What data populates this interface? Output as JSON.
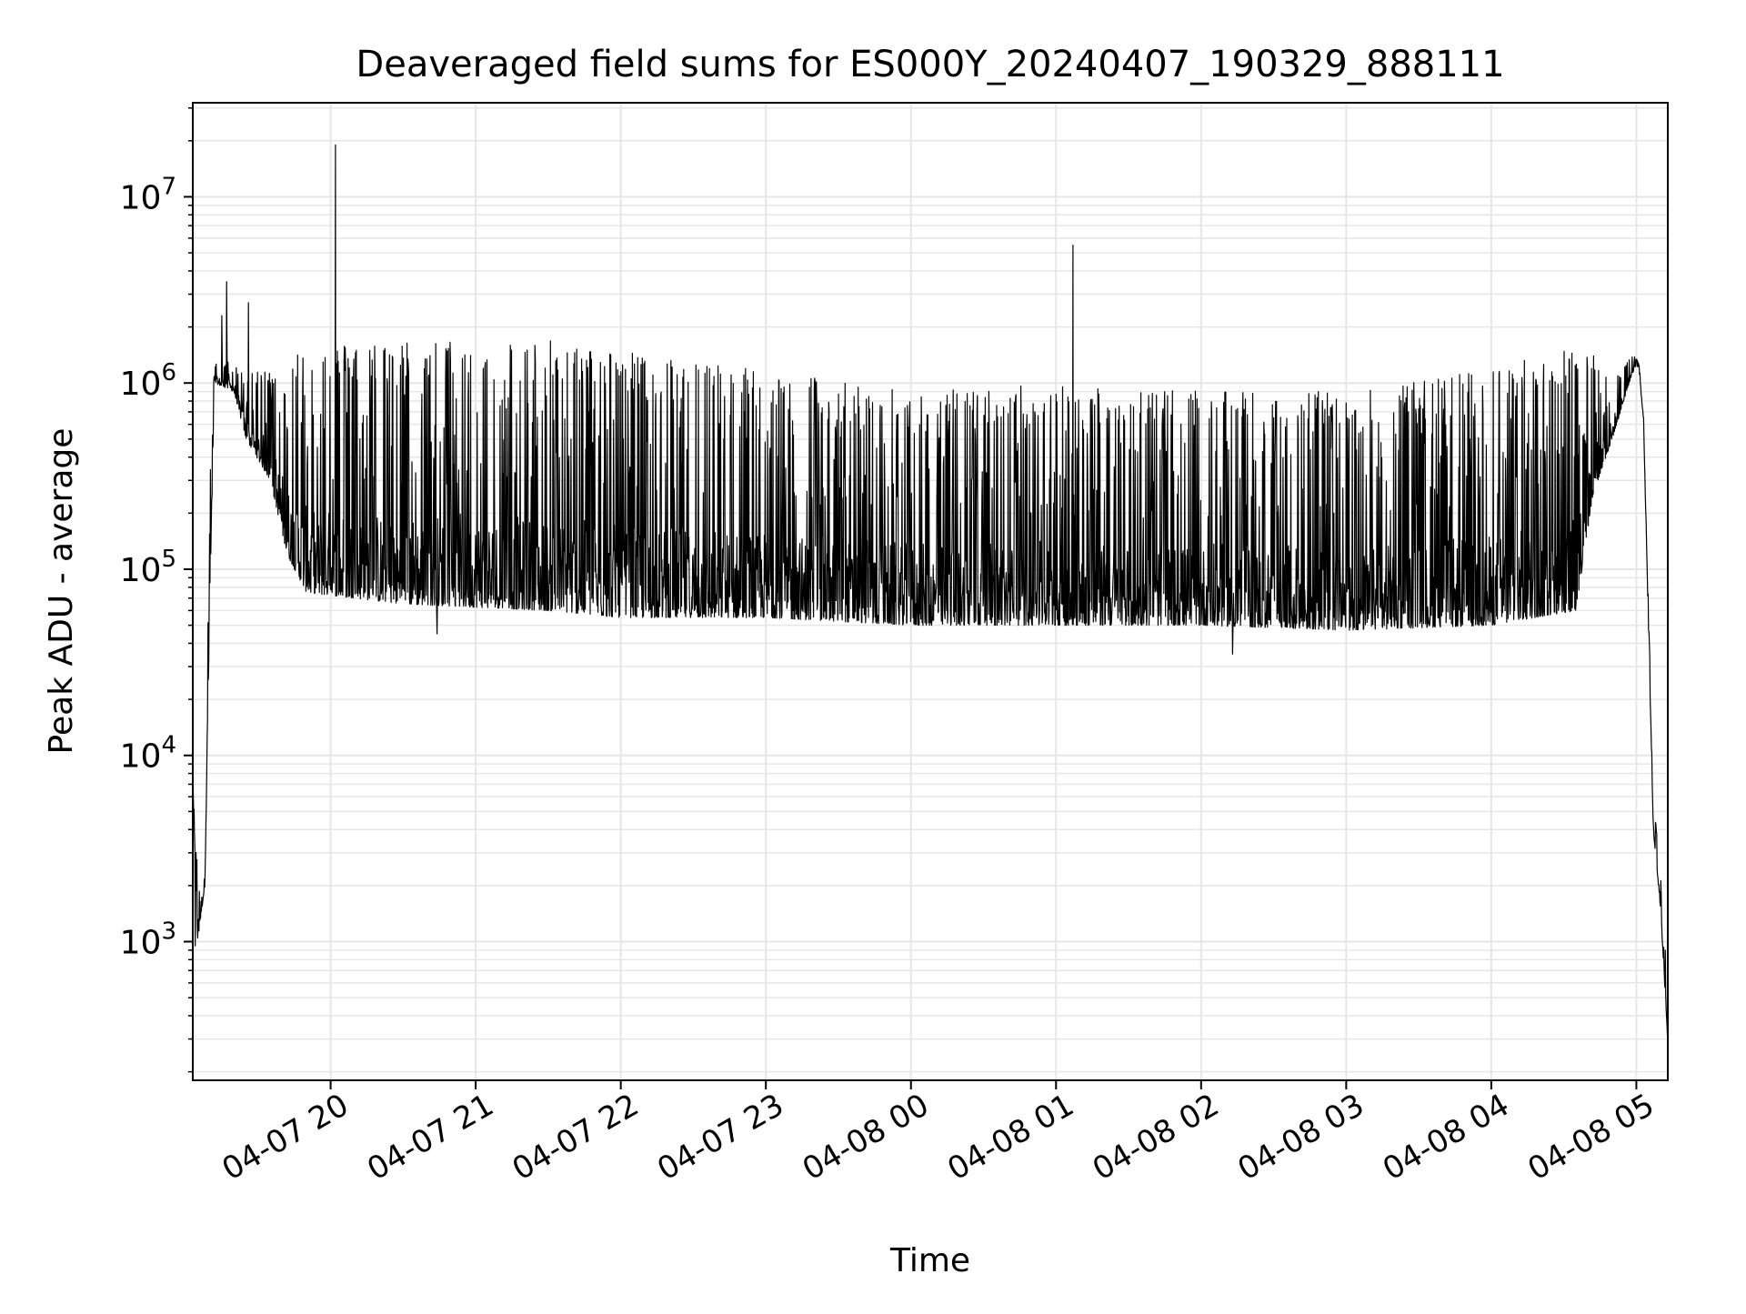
{
  "chart_data": {
    "type": "line",
    "title": "Deaveraged field sums for ES000Y_20240407_190329_888111",
    "xlabel": "Time",
    "ylabel": "Peak ADU - average",
    "yscale": "log",
    "ylim": [
      180,
      32000000
    ],
    "xlim": [
      "2024-04-07 19:03",
      "2024-04-08 05:13"
    ],
    "grid": true,
    "legend": "none",
    "line_color": "#000000",
    "grid_color": "#e6e6e6",
    "x_ticks": [
      {
        "t": "2024-04-07 20:00",
        "label": "04-07 20"
      },
      {
        "t": "2024-04-07 21:00",
        "label": "04-07 21"
      },
      {
        "t": "2024-04-07 22:00",
        "label": "04-07 22"
      },
      {
        "t": "2024-04-07 23:00",
        "label": "04-07 23"
      },
      {
        "t": "2024-04-08 00:00",
        "label": "04-08 00"
      },
      {
        "t": "2024-04-08 01:00",
        "label": "04-08 01"
      },
      {
        "t": "2024-04-08 02:00",
        "label": "04-08 02"
      },
      {
        "t": "2024-04-08 03:00",
        "label": "04-08 03"
      },
      {
        "t": "2024-04-08 04:00",
        "label": "04-08 04"
      },
      {
        "t": "2024-04-08 05:00",
        "label": "04-08 05"
      }
    ],
    "y_ticks": [
      {
        "value": 1000,
        "base": "10",
        "exp": "3"
      },
      {
        "value": 10000,
        "base": "10",
        "exp": "4"
      },
      {
        "value": 100000,
        "base": "10",
        "exp": "5"
      },
      {
        "value": 1000000,
        "base": "10",
        "exp": "6"
      },
      {
        "value": 10000000,
        "base": "10",
        "exp": "7"
      }
    ],
    "envelope": [
      {
        "t": "2024-04-07 19:03",
        "base": 7000,
        "peak": 7000
      },
      {
        "t": "2024-04-07 19:05",
        "base": 1000,
        "peak": 2500
      },
      {
        "t": "2024-04-07 19:08",
        "base": 2000,
        "peak": 3000
      },
      {
        "t": "2024-04-07 19:10",
        "base": 60000,
        "peak": 300000
      },
      {
        "t": "2024-04-07 19:12",
        "base": 1000000,
        "peak": 1300000
      },
      {
        "t": "2024-04-07 19:20",
        "base": 900000,
        "peak": 1300000
      },
      {
        "t": "2024-04-07 19:25",
        "base": 500000,
        "peak": 1100000
      },
      {
        "t": "2024-04-07 19:35",
        "base": 300000,
        "peak": 1200000
      },
      {
        "t": "2024-04-07 19:42",
        "base": 120000,
        "peak": 1500000
      },
      {
        "t": "2024-04-07 19:50",
        "base": 75000,
        "peak": 1600000
      },
      {
        "t": "2024-04-07 20:30",
        "base": 65000,
        "peak": 1700000
      },
      {
        "t": "2024-04-07 21:30",
        "base": 60000,
        "peak": 1700000
      },
      {
        "t": "2024-04-07 22:00",
        "base": 55000,
        "peak": 1500000
      },
      {
        "t": "2024-04-07 23:00",
        "base": 55000,
        "peak": 1200000
      },
      {
        "t": "2024-04-08 00:00",
        "base": 50000,
        "peak": 900000
      },
      {
        "t": "2024-04-08 01:00",
        "base": 50000,
        "peak": 1000000
      },
      {
        "t": "2024-04-08 02:00",
        "base": 50000,
        "peak": 900000
      },
      {
        "t": "2024-04-08 03:00",
        "base": 47000,
        "peak": 900000
      },
      {
        "t": "2024-04-08 04:00",
        "base": 50000,
        "peak": 1200000
      },
      {
        "t": "2024-04-08 04:35",
        "base": 60000,
        "peak": 1600000
      },
      {
        "t": "2024-04-08 04:42",
        "base": 250000,
        "peak": 1500000
      },
      {
        "t": "2024-04-08 04:50",
        "base": 500000,
        "peak": 1000000
      },
      {
        "t": "2024-04-08 04:58",
        "base": 1100000,
        "peak": 1400000
      },
      {
        "t": "2024-04-08 05:01",
        "base": 1300000,
        "peak": 1400000
      },
      {
        "t": "2024-04-08 05:03",
        "base": 600000,
        "peak": 700000
      },
      {
        "t": "2024-04-08 05:07",
        "base": 4000,
        "peak": 6000
      },
      {
        "t": "2024-04-08 05:10",
        "base": 1500,
        "peak": 2500
      },
      {
        "t": "2024-04-08 05:13",
        "base": 300,
        "peak": 300
      }
    ],
    "spikes": [
      {
        "t": "2024-04-07 19:15",
        "value": 2300000
      },
      {
        "t": "2024-04-07 19:17",
        "value": 3500000
      },
      {
        "t": "2024-04-07 19:26",
        "value": 2700000
      },
      {
        "t": "2024-04-07 20:02",
        "value": 19000000
      },
      {
        "t": "2024-04-08 01:07",
        "value": 5500000
      }
    ],
    "dips": [
      {
        "t": "2024-04-07 19:03",
        "value": 1000
      },
      {
        "t": "2024-04-07 19:04",
        "value": 950
      },
      {
        "t": "2024-04-07 20:44",
        "value": 45000
      },
      {
        "t": "2024-04-08 02:13",
        "value": 35000
      },
      {
        "t": "2024-04-08 05:12",
        "value": 900
      }
    ]
  }
}
